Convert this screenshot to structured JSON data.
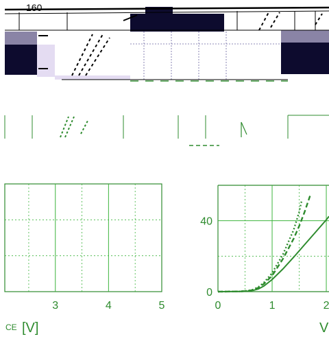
{
  "colors": {
    "curve": "#2e8b2e",
    "grid": "#3cb43c",
    "dark_block": "#0d0b2e",
    "gray_block": "#8a84a6",
    "lavender": "#e4dcf2"
  },
  "top_strip": {
    "tick_160": "160"
  },
  "chart_data": [
    {
      "type": "line",
      "panel": "left",
      "x_ticks": [
        "3",
        "4",
        "5"
      ],
      "xlabel_sub": "CE",
      "xlabel_unit": "[V]",
      "xlim": [
        2.05,
        5
      ],
      "ylim": [
        0,
        60
      ],
      "grid": true,
      "series": []
    },
    {
      "type": "line",
      "panel": "right",
      "x_ticks": [
        "0",
        "1",
        "2"
      ],
      "y_ticks": [
        "0",
        "40"
      ],
      "xlabel": "V",
      "xlim": [
        0,
        2.05
      ],
      "ylim": [
        0,
        60
      ],
      "grid": true,
      "series": [
        {
          "style": "solid",
          "x": [
            0.0,
            0.4,
            0.55,
            0.65,
            0.75,
            0.85,
            1.0,
            1.2,
            1.4,
            1.6,
            1.8,
            2.0,
            2.05
          ],
          "y": [
            0.0,
            0.1,
            0.3,
            0.7,
            1.6,
            3.2,
            6.8,
            12.8,
            19.5,
            26.5,
            33.5,
            40.5,
            42.5
          ]
        },
        {
          "style": "dashed",
          "x": [
            0.0,
            0.4,
            0.55,
            0.65,
            0.75,
            0.85,
            1.0,
            1.2,
            1.4,
            1.5,
            1.6,
            1.7
          ],
          "y": [
            0.0,
            0.1,
            0.4,
            1.0,
            2.3,
            4.5,
            9.0,
            18.5,
            30.0,
            37.0,
            45.0,
            54.0
          ]
        },
        {
          "style": "dotted",
          "x": [
            0.0,
            0.4,
            0.55,
            0.65,
            0.75,
            0.85,
            1.0,
            1.2,
            1.4,
            1.5,
            1.55
          ],
          "y": [
            0.0,
            0.1,
            0.5,
            1.2,
            2.7,
            5.2,
            10.5,
            21.0,
            35.0,
            45.0,
            52.0
          ]
        }
      ]
    }
  ]
}
